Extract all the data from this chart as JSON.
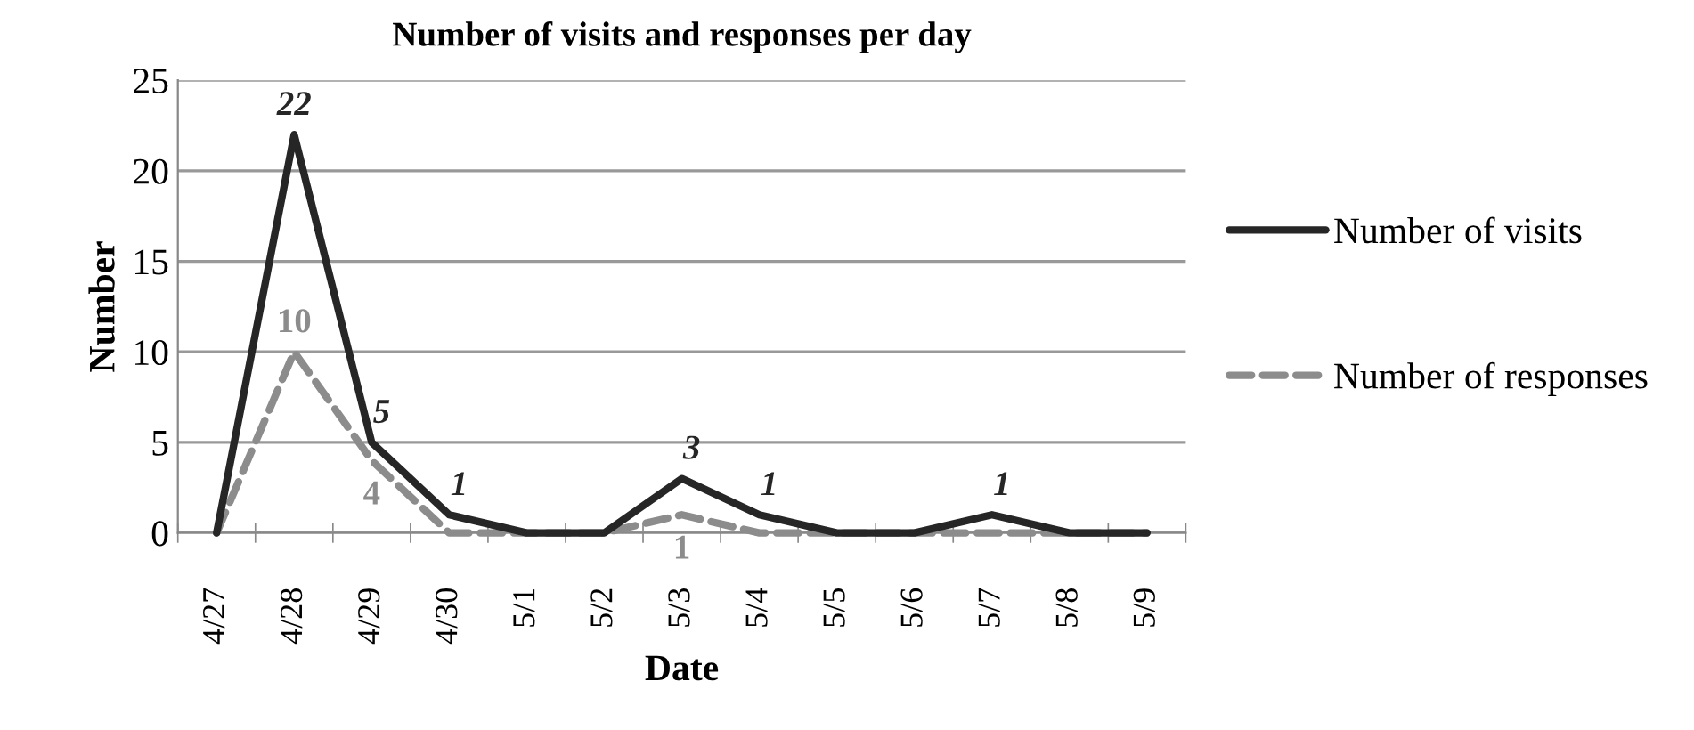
{
  "chart_data": {
    "type": "line",
    "title": "Number of visits and responses per day",
    "xlabel": "Date",
    "ylabel": "Number",
    "categories": [
      "4/27",
      "4/28",
      "4/29",
      "4/30",
      "5/1",
      "5/2",
      "5/3",
      "5/4",
      "5/5",
      "5/6",
      "5/7",
      "5/8",
      "5/9"
    ],
    "series": [
      {
        "name": "Number of visits",
        "color": "#262626",
        "line_style": "solid",
        "values": [
          0,
          22,
          5,
          1,
          0,
          0,
          3,
          1,
          0,
          0,
          1,
          0,
          0
        ],
        "value_labels": [
          null,
          "22",
          "5",
          "1",
          null,
          null,
          "3",
          "1",
          null,
          null,
          "1",
          null,
          null
        ]
      },
      {
        "name": "Number of responses",
        "color": "#8c8c8c",
        "line_style": "dashed",
        "values": [
          0,
          10,
          4,
          0,
          0,
          0,
          1,
          0,
          0,
          0,
          0,
          0,
          0
        ],
        "value_labels": [
          null,
          "10",
          "4",
          null,
          null,
          null,
          "1",
          null,
          null,
          null,
          null,
          null,
          null
        ]
      }
    ],
    "ylim": [
      0,
      25
    ],
    "yticks": [
      0,
      5,
      10,
      15,
      20,
      25
    ],
    "grid": "y",
    "legend": "right",
    "marker": "none"
  }
}
